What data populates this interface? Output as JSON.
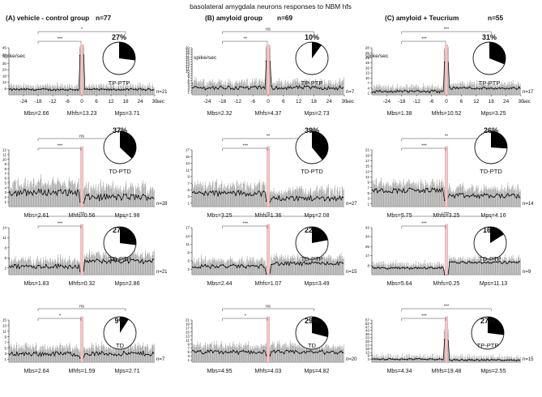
{
  "figure": {
    "title": "basolateral amygdala neurons   responses to NBM hfs",
    "unit_label": "spike/sec",
    "x_unit_label": "sec"
  },
  "chart_data": {
    "type": "bar",
    "xlabel": "sec",
    "ylabel": "spike/sec",
    "x_ticks": [
      -24,
      -18,
      -12,
      -6,
      0,
      6,
      12,
      18,
      24,
      30
    ],
    "xlim": [
      -30,
      30
    ],
    "stimulus_time": 0,
    "grid": false,
    "groups": [
      {
        "title": "(A) vehicle - control group",
        "n_label": "n=77",
        "panels": [
          {
            "percent": 27,
            "response": "TP-PTP",
            "n": "n=21",
            "yticks": [
              6,
              12,
              18,
              24,
              30,
              38,
              45
            ],
            "baseline": 5,
            "noise": 1.8,
            "peak": 38,
            "post": 5,
            "sig_bs": "***",
            "sig_ps": "*",
            "mbs": "Mbs=2.66",
            "mhfs": "Mhfs=13.23",
            "mps": "Mps=3.71"
          },
          {
            "percent": 37,
            "response": "TD-PTD",
            "n": "n=28",
            "yticks": [
              1,
              2,
              3,
              4,
              5,
              6,
              7,
              8,
              9,
              10,
              11,
              12
            ],
            "baseline": 3,
            "noise": 1.4,
            "peak": 0.8,
            "post": 2,
            "sig_bs": "***",
            "sig_ps": "ns",
            "mbs": "Mbs=2.61",
            "mhfs": "Mhfs=0.56",
            "mps": "Mps=1.98"
          },
          {
            "percent": 27,
            "response": "TD-PTP",
            "n": "n=21",
            "yticks": [
              2,
              5,
              8,
              11,
              14
            ],
            "baseline": 2.5,
            "noise": 1.3,
            "peak": 0.5,
            "post": 4,
            "sig_bs": "***",
            "sig_ps": "***",
            "mbs": "Mbs=1.83",
            "mhfs": "Mhfs=0.32",
            "mps": "Mps=2.86"
          },
          {
            "percent": 9,
            "response": "TD",
            "n": "n=7",
            "yticks": [
              1,
              3,
              5,
              7,
              9,
              11,
              13,
              15
            ],
            "baseline": 3,
            "noise": 1.6,
            "peak": 1.2,
            "post": 3,
            "sig_bs": "*",
            "sig_ps": "ns",
            "mbs": "Mbs=2.64",
            "mhfs": "Mhfs=1.59",
            "mps": "Mps=2.71"
          }
        ]
      },
      {
        "title": "(B) amyloid group",
        "n_label": "n=69",
        "panels": [
          {
            "percent": 10,
            "response": "TP-PTP",
            "n": "n=7",
            "yticks": [
              1,
              2,
              3,
              4,
              5,
              6,
              7,
              8,
              9,
              10,
              11,
              12,
              13,
              14,
              15,
              16,
              17,
              18,
              19,
              20
            ],
            "baseline": 3,
            "noise": 1.6,
            "peak": 14,
            "post": 3,
            "sig_bs": "**",
            "sig_ps": "ns",
            "mbs": "Mbs=2.32",
            "mhfs": "Mhfs=4.37",
            "mps": "Mps=2.73"
          },
          {
            "percent": 39,
            "response": "TD-PTD",
            "n": "n=27",
            "yticks": [
              1,
              3,
              5,
              7,
              9,
              11,
              13,
              15,
              17
            ],
            "baseline": 4,
            "noise": 1.6,
            "peak": 1.2,
            "post": 2.5,
            "sig_bs": "***",
            "sig_ps": "**",
            "mbs": "Mbs=3.25",
            "mhfs": "Mhfs=1.36",
            "mps": "Mps=2.08"
          },
          {
            "percent": 22,
            "response": "TD-PTP",
            "n": "n=15",
            "yticks": [
              2,
              5,
              8,
              11,
              14,
              17
            ],
            "baseline": 3,
            "noise": 1.4,
            "peak": 0.8,
            "post": 4,
            "sig_bs": "***",
            "sig_ps": "**",
            "mbs": "Mbs=2.44",
            "mhfs": "Mhfs=1.07",
            "mps": "Mps=3.49"
          },
          {
            "percent": 29,
            "response": "TD",
            "n": "n=20",
            "yticks": [
              1,
              3,
              5,
              7,
              9,
              11,
              13,
              15,
              17,
              19,
              21
            ],
            "baseline": 5,
            "noise": 2.0,
            "peak": 4,
            "post": 5,
            "sig_bs": "*",
            "sig_ps": "ns",
            "mbs": "Mbs=4.95",
            "mhfs": "Mhfs=4.03",
            "mps": "Mps=4.82"
          }
        ]
      },
      {
        "title": "(C) amyloid + Teucrium",
        "n_label": "n=55",
        "panels": [
          {
            "percent": 31,
            "response": "TP-PTP",
            "n": "n=17",
            "yticks": [
              1,
              4,
              7,
              10,
              13,
              16,
              19,
              22,
              25,
              28
            ],
            "baseline": 2,
            "noise": 1.5,
            "peak": 20,
            "post": 4,
            "sig_bs": "***",
            "sig_ps": "***",
            "mbs": "Mbs=1.38",
            "mhfs": "Mhfs=10.52",
            "mps": "Mps=3.25"
          },
          {
            "percent": 26,
            "response": "TD-PTD",
            "n": "n=14",
            "yticks": [
              1,
              3,
              5,
              7,
              9,
              11,
              13,
              15,
              17,
              19,
              21
            ],
            "baseline": 6,
            "noise": 1.8,
            "peak": 3,
            "post": 4,
            "sig_bs": "***",
            "sig_ps": "**",
            "mbs": "Mbs=5.75",
            "mhfs": "Mhfs=3.25",
            "mps": "Mps=4.16"
          },
          {
            "percent": 16,
            "response": "TD-PTP",
            "n": "n=9",
            "yticks": [
              8,
              17,
              25,
              34,
              42
            ],
            "baseline": 6,
            "noise": 2.0,
            "peak": 0.3,
            "post": 11,
            "sig_bs": "***",
            "sig_ps": "***",
            "mbs": "Mbs=5.64",
            "mhfs": "Mhfs=0.25",
            "mps": "Mps=11.13"
          },
          {
            "percent": 27,
            "response": "TP-PTP",
            "n": "n=15",
            "yticks": [
              4,
              9,
              13,
              18,
              23,
              28,
              33,
              38,
              43,
              47,
              52,
              57
            ],
            "baseline": 4,
            "noise": 1.8,
            "peak": 30,
            "post": 3,
            "sig_bs": "***",
            "sig_ps": "***",
            "mbs": "Mbs=4.34",
            "mhfs": "Mhfs=19.48",
            "mps": "Mps=2.55"
          }
        ]
      }
    ]
  }
}
